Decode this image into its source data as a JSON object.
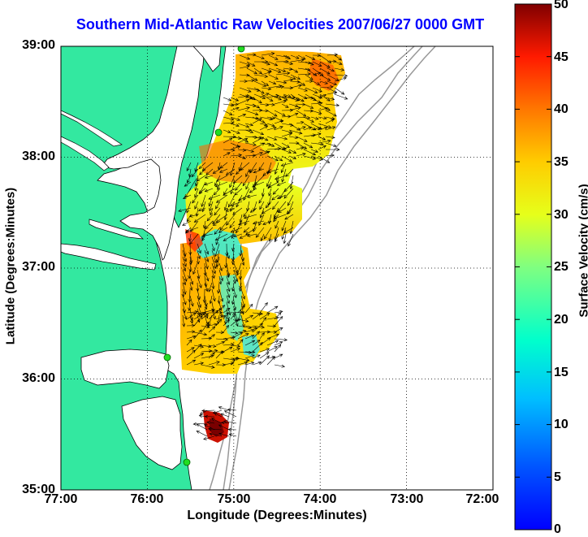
{
  "title": "Southern Mid-Atlantic Raw Velocities 2007/06/27 0000 GMT",
  "x_axis": {
    "label": "Longitude (Degrees:Minutes)",
    "ticks": [
      "77:00",
      "76:00",
      "75:00",
      "74:00",
      "73:00",
      "72:00"
    ]
  },
  "y_axis": {
    "label": "Latitude (Degrees:Minutes)",
    "ticks": [
      "39:00",
      "38:00",
      "37:00",
      "36:00",
      "35:00"
    ]
  },
  "colorbar": {
    "label": "Surface Velocity (cm/s)",
    "ticks": [
      "50",
      "45",
      "40",
      "35",
      "30",
      "25",
      "20",
      "15",
      "10",
      "5",
      "0"
    ],
    "min": 0,
    "max": 50,
    "colormap": "jet"
  },
  "map": {
    "lon_range": [
      -77,
      -72
    ],
    "lat_range": [
      35,
      39
    ],
    "land_color": "#33e8a0",
    "water_color": "#ffffff",
    "bathymetry_color": "#999999",
    "station_color": "#22dd22",
    "grid": "dotted"
  }
}
